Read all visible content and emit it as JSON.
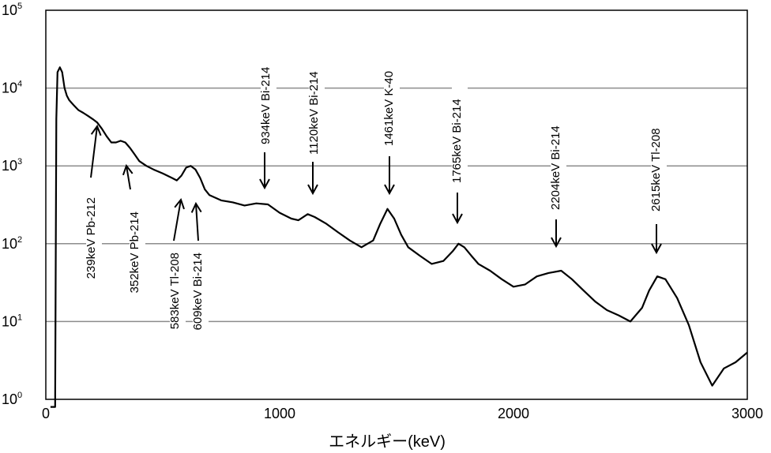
{
  "chart_data": {
    "type": "line",
    "title": "",
    "xlabel": "エネルギー(keV)",
    "ylabel": "",
    "xlim": [
      0,
      3000
    ],
    "ylim": [
      1,
      100000
    ],
    "yscale": "log",
    "x_ticks": [
      "0",
      "1000",
      "2000",
      "3000"
    ],
    "y_ticks": [
      {
        "base": "10",
        "exp": "0"
      },
      {
        "base": "10",
        "exp": "1"
      },
      {
        "base": "10",
        "exp": "2"
      },
      {
        "base": "10",
        "exp": "3"
      },
      {
        "base": "10",
        "exp": "4"
      },
      {
        "base": "10",
        "exp": "5"
      }
    ],
    "grid": "horizontal",
    "legend": "none",
    "line_color": "#000000",
    "series": [
      {
        "x": [
          20,
          40,
          45,
          50,
          60,
          70,
          80,
          90,
          100,
          120,
          140,
          160,
          180,
          200,
          220,
          240,
          260,
          280,
          300,
          320,
          340,
          360,
          380,
          400,
          430,
          460,
          500,
          540,
          560,
          580,
          600,
          620,
          640,
          660,
          680,
          700,
          750,
          800,
          850,
          900,
          950,
          1000,
          1050,
          1080,
          1120,
          1150,
          1200,
          1250,
          1300,
          1350,
          1400,
          1430,
          1461,
          1490,
          1520,
          1550,
          1600,
          1650,
          1700,
          1740,
          1765,
          1790,
          1820,
          1850,
          1900,
          1950,
          2000,
          2050,
          2100,
          2150,
          2204,
          2250,
          2300,
          2350,
          2400,
          2450,
          2500,
          2550,
          2580,
          2615,
          2650,
          2700,
          2750,
          2800,
          2850,
          2900,
          2950,
          3000
        ],
        "y": [
          0.8,
          0.8,
          4000,
          16000,
          18500,
          16000,
          10000,
          8000,
          7000,
          6000,
          5200,
          4800,
          4400,
          4000,
          3600,
          3000,
          2400,
          2000,
          2000,
          2100,
          2000,
          1700,
          1400,
          1150,
          1000,
          900,
          800,
          700,
          650,
          750,
          950,
          1000,
          900,
          700,
          500,
          420,
          360,
          340,
          310,
          330,
          320,
          250,
          210,
          200,
          240,
          220,
          180,
          140,
          110,
          90,
          110,
          180,
          280,
          210,
          130,
          90,
          70,
          55,
          60,
          80,
          100,
          90,
          70,
          55,
          45,
          35,
          28,
          30,
          38,
          42,
          45,
          35,
          25,
          18,
          14,
          12,
          10,
          15,
          25,
          38,
          35,
          20,
          9,
          3,
          1.5,
          2.5,
          3,
          4
        ]
      }
    ],
    "annotations": [
      {
        "label": "239keV Pb-212",
        "x": 239
      },
      {
        "label": "352keV Pb-214",
        "x": 352
      },
      {
        "label": "583keV Tl-208",
        "x": 583
      },
      {
        "label": "609keV Bi-214",
        "x": 609
      },
      {
        "label": "934keV Bi-214",
        "x": 934
      },
      {
        "label": "1120keV Bi-214",
        "x": 1120
      },
      {
        "label": "1461keV K-40",
        "x": 1461
      },
      {
        "label": "1765keV Bi-214",
        "x": 1765
      },
      {
        "label": "2204keV Bi-214",
        "x": 2204
      },
      {
        "label": "2615keV Tl-208",
        "x": 2615
      }
    ]
  }
}
